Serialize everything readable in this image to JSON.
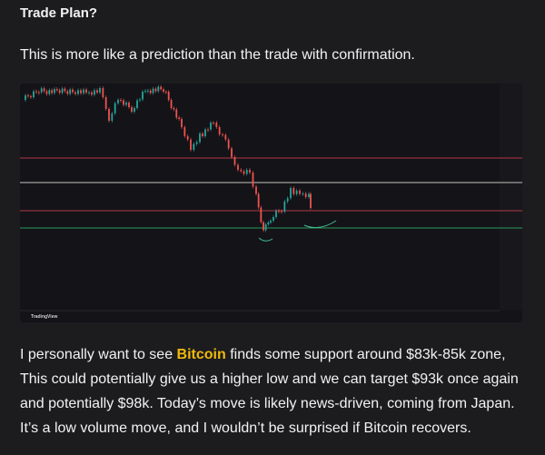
{
  "header": {
    "title": "Trade Plan?"
  },
  "intro": "This is more like a prediction than the trade with confirmation.",
  "chart_image": {
    "watermark": "TradingView"
  },
  "body": {
    "line_1_before": "I personally want to see ",
    "link": "Bitcoin",
    "line_1_after": " finds some support around $83k-85k zone,",
    "line_2": "This could potentially give us a higher low and we can target $93k once again",
    "line_3": "and potentially $98k. Today’s move is likely news-driven, coming from Japan.",
    "line_4": "It’s a low volume move, and I wouldn’t be surprised if Bitcoin recovers."
  }
}
